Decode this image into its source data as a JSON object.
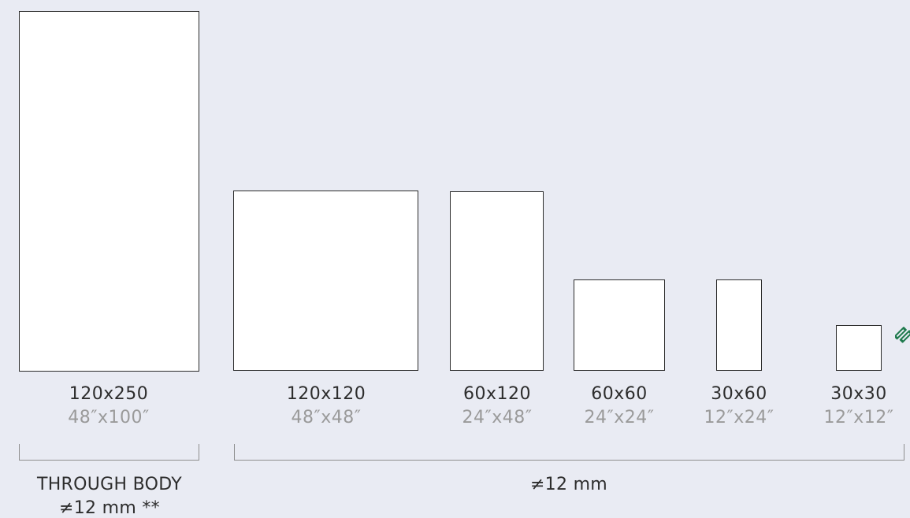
{
  "formats": [
    {
      "metric": "120x250",
      "imperial": "48″x100″"
    },
    {
      "metric": "120x120",
      "imperial": "48″x48″"
    },
    {
      "metric": "60x120",
      "imperial": "24″x48″"
    },
    {
      "metric": "60x60",
      "imperial": "24″x24″"
    },
    {
      "metric": "30x60",
      "imperial": "12″x24″"
    },
    {
      "metric": "30x30",
      "imperial": "12″x12″"
    }
  ],
  "groups": {
    "through_body": {
      "title": "THROUGH BODY",
      "thickness": "≠12 mm **"
    },
    "standard": {
      "thickness": "≠12 mm"
    }
  },
  "colors": {
    "background": "#e9ebf3",
    "logo": "#1f7a4d"
  },
  "icons": {
    "logo": "brand-logo-icon"
  }
}
